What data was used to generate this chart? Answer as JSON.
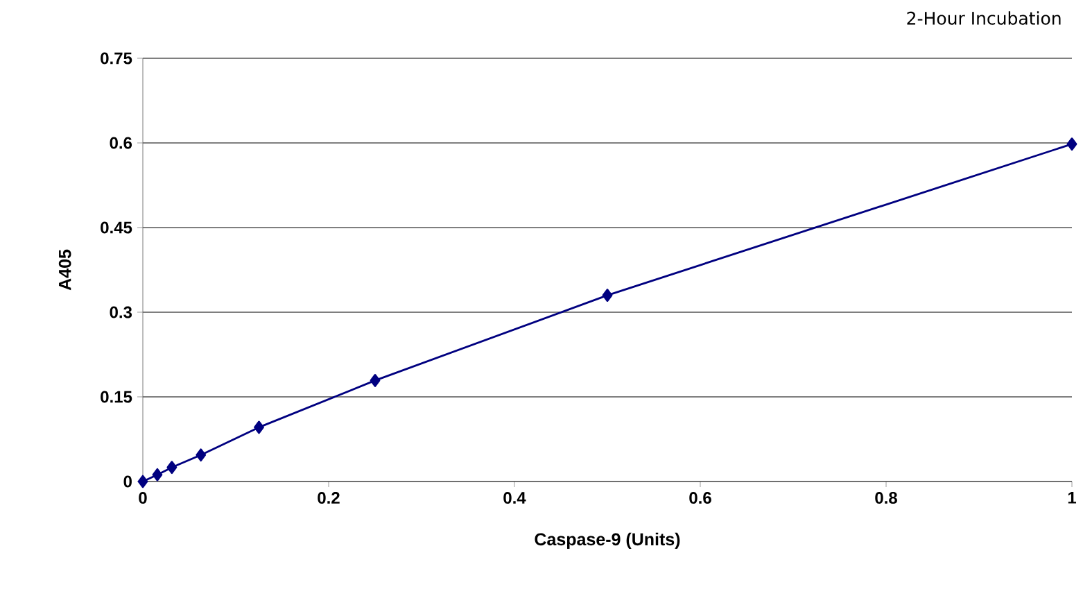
{
  "chart_data": {
    "type": "line",
    "xlabel": "Caspase-9 (Units)",
    "ylabel": "A405",
    "annotations": [
      "2-Hour Incubation"
    ],
    "x": [
      0,
      0.015625,
      0.03125,
      0.0625,
      0.125,
      0.25,
      0.5,
      1
    ],
    "series": [
      {
        "color": "#000080",
        "values": [
          0,
          0.012,
          0.025,
          0.047,
          0.096,
          0.179,
          0.33,
          0.598
        ]
      }
    ],
    "xlim": [
      0,
      1
    ],
    "xticks": [
      0,
      0.2,
      0.4,
      0.6,
      0.8,
      1
    ],
    "ylim": [
      0,
      0.75
    ],
    "yticks": [
      0,
      0.15,
      0.3,
      0.45,
      0.6,
      0.75
    ],
    "grid": "y",
    "marker": "diamond",
    "line_style": "solid"
  }
}
